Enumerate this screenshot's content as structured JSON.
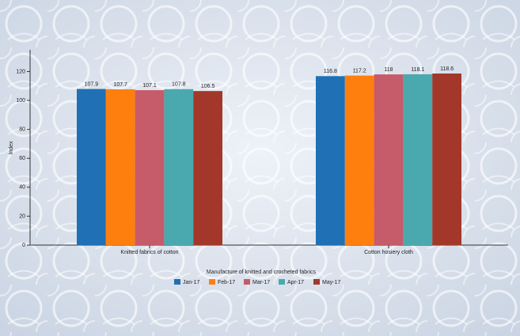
{
  "chart_data": {
    "type": "bar",
    "y_label": "Index",
    "categories": [
      "Knitted fabrics of cotton",
      "Cotton hosiery cloth"
    ],
    "series": [
      {
        "name": "Jan-17",
        "color": "#1f70b5",
        "values": [
          107.9,
          116.8
        ]
      },
      {
        "name": "Feb-17",
        "color": "#ff7f0e",
        "values": [
          107.7,
          117.2
        ]
      },
      {
        "name": "Mar-17",
        "color": "#c65b69",
        "values": [
          107.1,
          118
        ]
      },
      {
        "name": "Apr-17",
        "color": "#4aa9ae",
        "values": [
          107.8,
          118.1
        ]
      },
      {
        "name": "May-17",
        "color": "#a3382a",
        "values": [
          106.5,
          118.6
        ]
      }
    ],
    "legend_title": "Manufacture of knitted and crocheted fabrics",
    "ylim": [
      0,
      135
    ],
    "yticks": [
      0,
      20,
      40,
      60,
      80,
      100,
      120
    ]
  }
}
